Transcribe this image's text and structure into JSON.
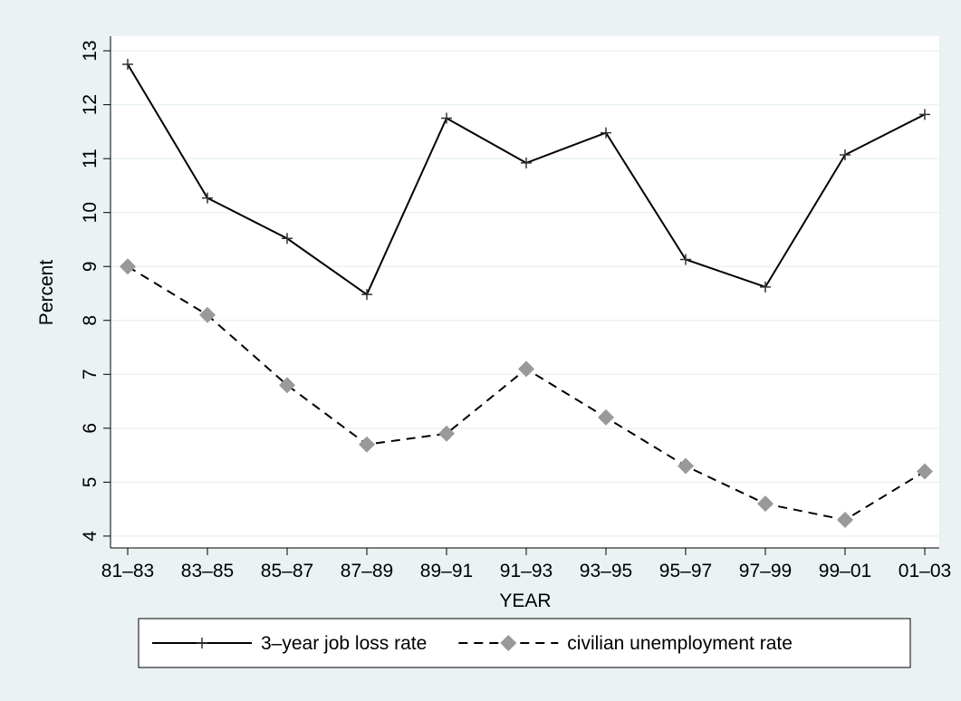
{
  "chart_data": {
    "type": "line",
    "x_label": "YEAR",
    "y_label": "Percent",
    "categories": [
      "81–83",
      "83–85",
      "85–87",
      "87–89",
      "89–91",
      "91–93",
      "93–95",
      "95–97",
      "97–99",
      "99–01",
      "01–03"
    ],
    "series": [
      {
        "name": "3–year job loss rate",
        "color": "#000000",
        "dash": "solid",
        "marker": "plus",
        "marker_color": "#333333",
        "values": [
          12.75,
          10.27,
          9.52,
          8.48,
          11.75,
          10.92,
          11.48,
          9.13,
          8.62,
          11.07,
          11.82
        ]
      },
      {
        "name": "civilian unemployment rate",
        "color": "#000000",
        "dash": "dashed",
        "marker": "diamond",
        "marker_color": "#999999",
        "values": [
          9.0,
          8.1,
          6.8,
          5.7,
          5.9,
          7.1,
          6.2,
          5.3,
          4.6,
          4.3,
          5.2
        ]
      }
    ],
    "ylim": [
      3.78,
      13.27
    ],
    "yticks": [
      4,
      5,
      6,
      7,
      8,
      9,
      10,
      11,
      12,
      13
    ],
    "grid": true,
    "legend": "bottom"
  }
}
